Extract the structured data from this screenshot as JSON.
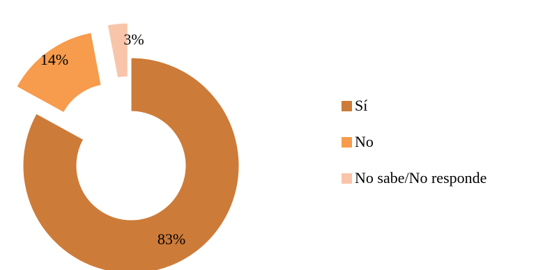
{
  "chart_data": {
    "type": "pie",
    "variant": "donut",
    "exploded": true,
    "categories": [
      "Sí",
      "No",
      "No sabe/No responde"
    ],
    "values": [
      83,
      14,
      3
    ],
    "labels": [
      "83%",
      "14%",
      "3%"
    ],
    "colors": [
      "#cd7b39",
      "#f79b4c",
      "#f9c5aa"
    ],
    "legend": "right"
  }
}
